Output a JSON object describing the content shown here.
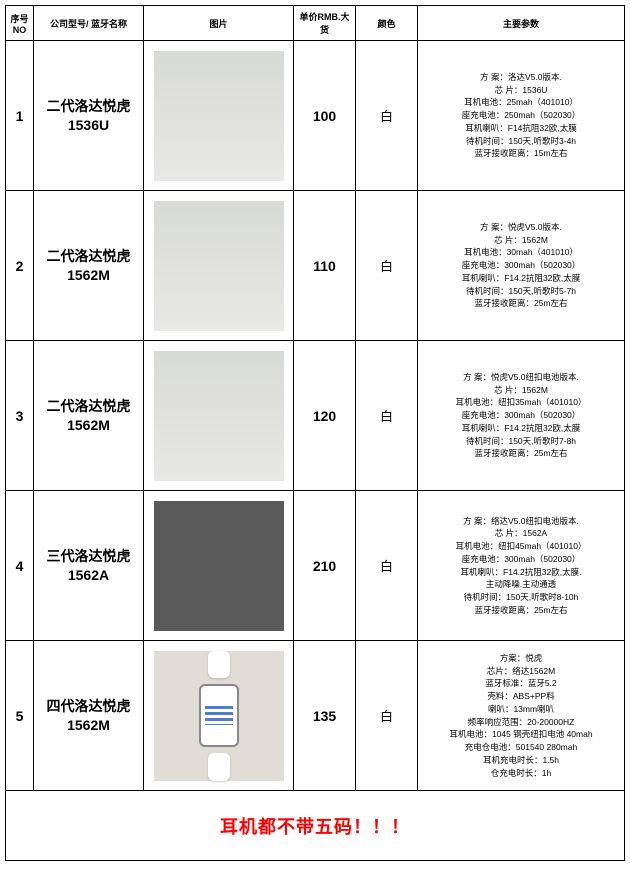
{
  "headers": {
    "no": "序号NO",
    "name": "公司型号/ 蓝牙名称",
    "img": "图片",
    "price": "单价RMB.大货",
    "color": "颜色",
    "spec": "主要参数"
  },
  "rows": [
    {
      "no": "1",
      "name_line1": "二代洛达悦虎",
      "name_line2": "1536U",
      "price": "100",
      "color": "白",
      "img_style": "style1",
      "specs": [
        "方 案：洛达V5.0版本.",
        "芯 片：1536U",
        "耳机电池：25mah（401010）",
        "座充电池：250mah（502030）",
        "耳机喇叭：F14抗阻32欧,太膜",
        "待机时间：150天,听歌时3-4h",
        "蓝牙接收距离：15m左右"
      ]
    },
    {
      "no": "2",
      "name_line1": "二代洛达悦虎",
      "name_line2": "1562M",
      "price": "110",
      "color": "白",
      "img_style": "style1",
      "specs": [
        "方 案：悦虎V5.0版本.",
        "芯 片：1562M",
        "耳机电池：30mah（401010）",
        "座充电池：300mah（502030）",
        "耳机喇叭：F14.2抗阻32欧,太膜",
        "待机时间：150天,听歌时5-7h",
        "蓝牙接收距离：25m左右"
      ]
    },
    {
      "no": "3",
      "name_line1": "二代洛达悦虎",
      "name_line2": "1562M",
      "price": "120",
      "color": "白",
      "img_style": "style1",
      "specs": [
        "方 案：悦虎V5.0纽扣电池版本.",
        "芯 片：1562M",
        "耳机电池：纽扣35mah（401010）",
        "座充电池：300mah（502030）",
        "耳机喇叭：F14.2抗阻32欧,太膜",
        "待机时间：150天,听歌时7-8h",
        "蓝牙接收距离：25m左右"
      ]
    },
    {
      "no": "4",
      "name_line1": "三代洛达悦虎",
      "name_line2": "1562A",
      "price": "210",
      "color": "白",
      "img_style": "style2",
      "specs": [
        "方 案：络达V5.0纽扣电池版本.",
        "芯 片：1562A",
        "耳机电池：纽扣45mah（401010）",
        "座充电池：300mah（502030）",
        "耳机喇叭：F14.2抗阻32欧,太膜.",
        "主动降噪.主动通透",
        "待机时间：150天,听歌时8-10h",
        "蓝牙接收距离：25m左右"
      ]
    },
    {
      "no": "5",
      "name_line1": "四代洛达悦虎",
      "name_line2": "1562M",
      "price": "135",
      "color": "白",
      "img_style": "style3",
      "specs": [
        "方案：悦虎",
        "芯片：络达1562M",
        "蓝牙标准：蓝牙5.2",
        "壳料：ABS+PP料",
        "喇叭：13mm喇叭",
        "频率响应范围：20-20000HZ",
        "耳机电池：1045 钢壳纽扣电池 40mah",
        "充电仓电池：501540 280mah",
        "耳机充电时长：1.5h",
        "仓充电时长：1h"
      ]
    }
  ],
  "footer_text": "耳机都不带五码！！！"
}
